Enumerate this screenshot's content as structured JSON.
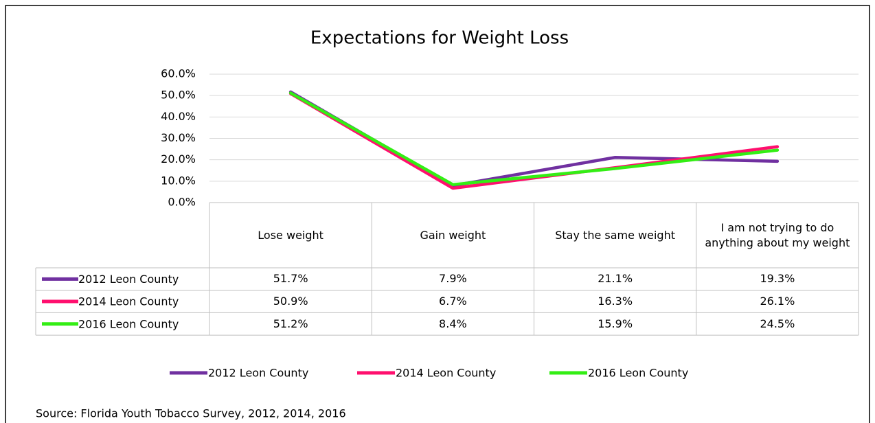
{
  "chart_data": {
    "type": "line",
    "title": "Expectations for Weight Loss",
    "categories": [
      "Lose weight",
      "Gain weight",
      "Stay the same weight",
      "I am not trying to do anything about my weight"
    ],
    "series": [
      {
        "name": "2012 Leon County",
        "color": "#7030a0",
        "values": [
          51.7,
          7.9,
          21.1,
          19.3
        ],
        "value_labels": [
          "51.7%",
          "7.9%",
          "21.1%",
          "19.3%"
        ]
      },
      {
        "name": "2014 Leon County",
        "color": "#ff0f6e",
        "values": [
          50.9,
          6.7,
          16.3,
          26.1
        ],
        "value_labels": [
          "50.9%",
          "6.7%",
          "16.3%",
          "26.1%"
        ]
      },
      {
        "name": "2016 Leon County",
        "color": "#33ee14",
        "values": [
          51.2,
          8.4,
          15.9,
          24.5
        ],
        "value_labels": [
          "51.2%",
          "8.4%",
          "15.9%",
          "24.5%"
        ]
      }
    ],
    "ylim": [
      0,
      60
    ],
    "yticks": [
      {
        "value": 0,
        "label": "0.0%"
      },
      {
        "value": 10,
        "label": "10.0%"
      },
      {
        "value": 20,
        "label": "20.0%"
      },
      {
        "value": 30,
        "label": "30.0%"
      },
      {
        "value": 40,
        "label": "40.0%"
      },
      {
        "value": 50,
        "label": "50.0%"
      },
      {
        "value": 60,
        "label": "60.0%"
      }
    ],
    "grid": true,
    "data_table": true,
    "legend": "bottom",
    "source": "Source: Florida Youth Tobacco Survey, 2012, 2014, 2016"
  }
}
